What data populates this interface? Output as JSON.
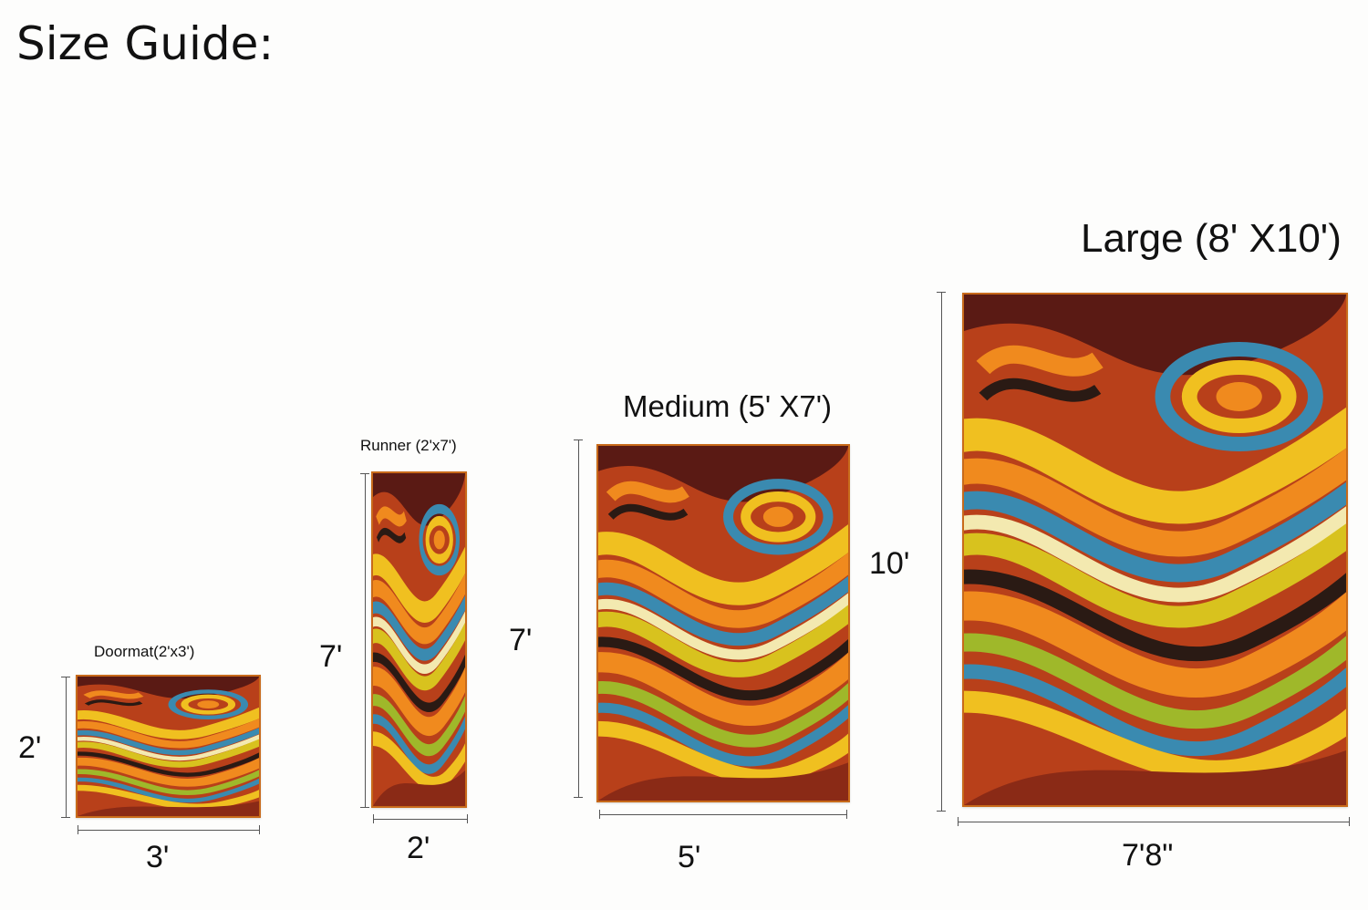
{
  "title": "Size Guide:",
  "sizes": {
    "doormat": {
      "label": "Doormat(2'x3')",
      "height": "2'",
      "width": "3'"
    },
    "runner": {
      "label": "Runner (2'x7')",
      "height": "7'",
      "width": "2'"
    },
    "medium": {
      "label": "Medium (5' X7')",
      "height": "7'",
      "width": "5'"
    },
    "large": {
      "label": "Large (8' X10')",
      "height": "10'",
      "width": "7'8\""
    }
  },
  "colors": {
    "background": "#fdfdfc",
    "rug_base": "#c0461a",
    "rug_border": "#c86a1a"
  }
}
